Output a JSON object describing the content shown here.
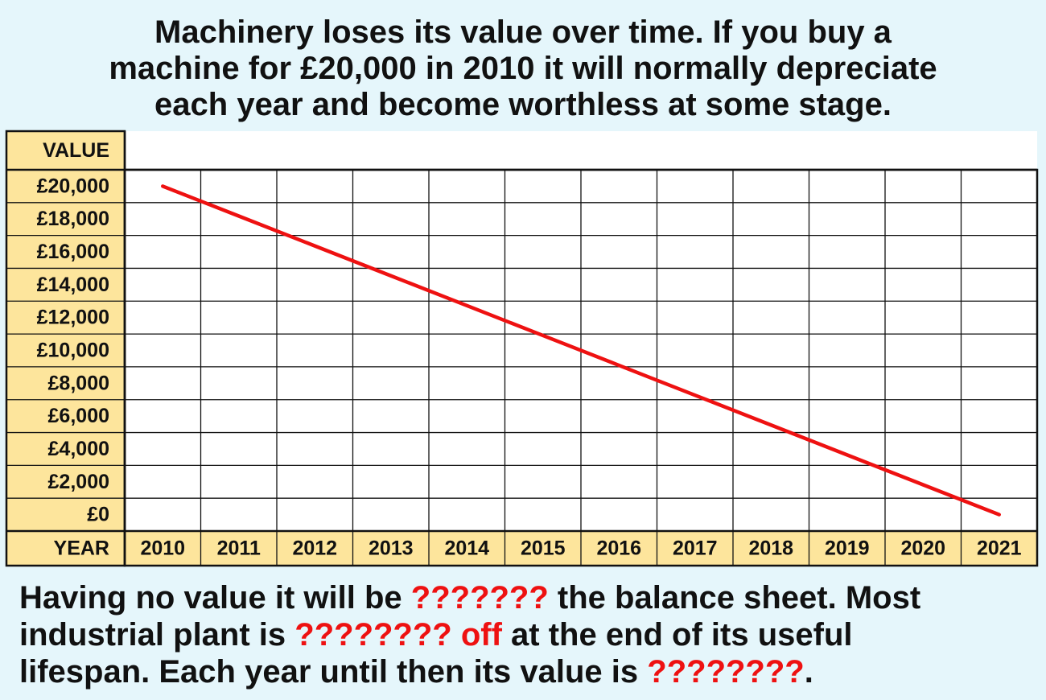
{
  "title": {
    "lines": [
      "Machinery loses its value over time. If you buy a",
      "machine for £20,000 in 2010 it will normally depreciate",
      "each year and become worthless at some stage."
    ]
  },
  "chart_data": {
    "type": "line",
    "ylabel": "VALUE",
    "xlabel": "YEAR",
    "categories": [
      "2010",
      "2011",
      "2012",
      "2013",
      "2014",
      "2015",
      "2016",
      "2017",
      "2018",
      "2019",
      "2020",
      "2021"
    ],
    "ytick_labels": [
      "£20,000",
      "£18,000",
      "£16,000",
      "£14,000",
      "£12,000",
      "£10,000",
      "£8,000",
      "£6,000",
      "£4,000",
      "£2,000",
      "£0"
    ],
    "ytick_values": [
      20000,
      18000,
      16000,
      14000,
      12000,
      10000,
      8000,
      6000,
      4000,
      2000,
      0
    ],
    "ylim": [
      0,
      20000
    ],
    "grid": true,
    "series": [
      {
        "values": [
          20000,
          18181.82,
          16363.64,
          14545.45,
          12727.27,
          10909.09,
          9090.91,
          7272.73,
          5454.55,
          3636.36,
          1818.18,
          0
        ],
        "color": "#ee1111"
      }
    ],
    "colors": {
      "label_cell": "#fde59c",
      "grid": "#111111",
      "line": "#ee1111"
    }
  },
  "bottom_text": {
    "line1": {
      "a": "Having no value it will be ",
      "b": "???????",
      "c": " the balance sheet. Most"
    },
    "line2": {
      "a": "industrial plant is ",
      "b": "???????? off",
      "c": " at the end of its useful"
    },
    "line3": {
      "a": "lifespan. Each year until then its value is ",
      "b": "????????",
      "c": "."
    }
  },
  "colors": {
    "background": "#e5f6fb",
    "highlight": "#ee1111"
  }
}
